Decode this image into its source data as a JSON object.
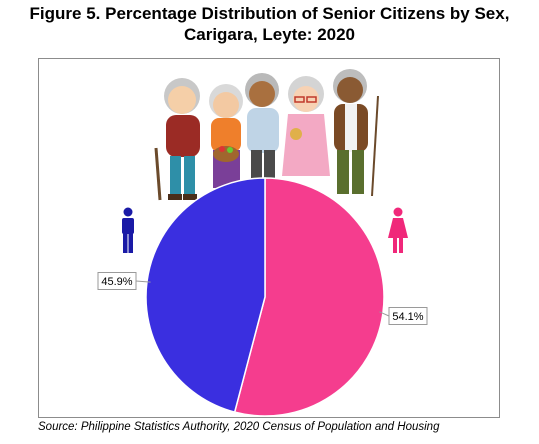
{
  "title": {
    "line1": "Figure 5. Percentage Distribution of Senior Citizens by Sex,",
    "line2": "Carigara, Leyte: 2020"
  },
  "source": "Source: Philippine Statistics Authority, 2020 Census of Population and Housing",
  "colors": {
    "male": "#3a2fe0",
    "female": "#f53d8e"
  },
  "icons": [
    "male-person-icon",
    "female-person-icon",
    "senior-citizens-illustration"
  ],
  "chart_data": {
    "type": "pie",
    "title": "Figure 5. Percentage Distribution of Senior Citizens by Sex, Carigara, Leyte: 2020",
    "slices": [
      {
        "category": "Female",
        "value": 54.1,
        "label": "54.1%",
        "color": "#f53d8e"
      },
      {
        "category": "Male",
        "value": 45.9,
        "label": "45.9%",
        "color": "#3a2fe0"
      }
    ],
    "legend": "icons beside slices"
  }
}
